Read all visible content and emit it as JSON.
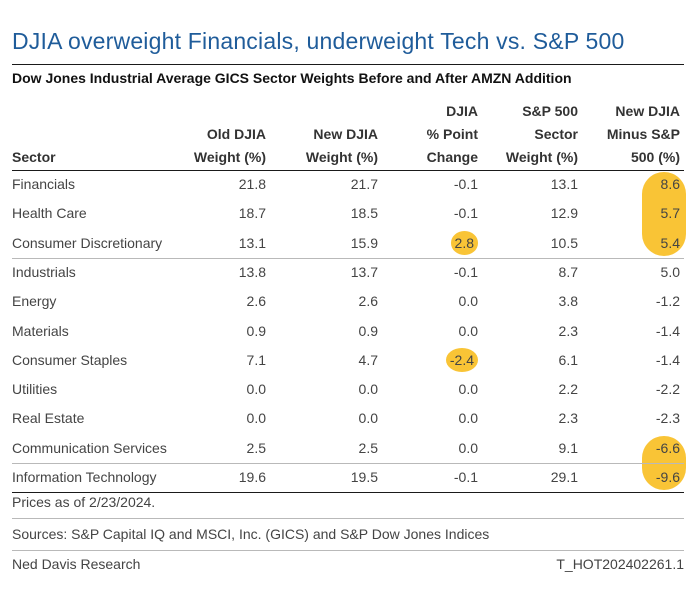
{
  "title": "DJIA overweight Financials, underweight Tech vs. S&P 500",
  "subtitle": "Dow Jones Industrial Average GICS Sector Weights Before and After AMZN Addition",
  "columns": [
    {
      "lines": [
        "",
        "",
        "Sector"
      ]
    },
    {
      "lines": [
        "",
        "Old DJIA",
        "Weight (%)"
      ]
    },
    {
      "lines": [
        "",
        "New DJIA",
        "Weight (%)"
      ]
    },
    {
      "lines": [
        "DJIA",
        "% Point",
        "Change"
      ]
    },
    {
      "lines": [
        "S&P 500",
        "Sector",
        "Weight (%)"
      ]
    },
    {
      "lines": [
        "New DJIA",
        "Minus S&P",
        "500 (%)"
      ]
    }
  ],
  "highlight_color": "#f9c436",
  "chart_data": {
    "type": "table",
    "title": "DJIA overweight Financials, underweight Tech vs. S&P 500",
    "subtitle": "Dow Jones Industrial Average GICS Sector Weights Before and After AMZN Addition",
    "columns": [
      "Sector",
      "Old DJIA Weight (%)",
      "New DJIA Weight (%)",
      "DJIA % Point Change",
      "S&P 500 Sector Weight (%)",
      "New DJIA Minus S&P 500 (%)"
    ],
    "rows": [
      [
        "Financials",
        "21.8",
        "21.7",
        "-0.1",
        "13.1",
        "8.6"
      ],
      [
        "Health Care",
        "18.7",
        "18.5",
        "-0.1",
        "12.9",
        "5.7"
      ],
      [
        "Consumer Discretionary",
        "13.1",
        "15.9",
        "2.8",
        "10.5",
        "5.4"
      ],
      [
        "Industrials",
        "13.8",
        "13.7",
        "-0.1",
        "8.7",
        "5.0"
      ],
      [
        "Energy",
        "2.6",
        "2.6",
        "0.0",
        "3.8",
        "-1.2"
      ],
      [
        "Materials",
        "0.9",
        "0.9",
        "0.0",
        "2.3",
        "-1.4"
      ],
      [
        "Consumer Staples",
        "7.1",
        "4.7",
        "-2.4",
        "6.1",
        "-1.4"
      ],
      [
        "Utilities",
        "0.0",
        "0.0",
        "0.0",
        "2.2",
        "-2.2"
      ],
      [
        "Real Estate",
        "0.0",
        "0.0",
        "0.0",
        "2.3",
        "-2.3"
      ],
      [
        "Communication Services",
        "2.5",
        "2.5",
        "0.0",
        "9.1",
        "-6.6"
      ],
      [
        "Information Technology",
        "19.6",
        "19.5",
        "-0.1",
        "29.1",
        "-9.6"
      ]
    ],
    "highlighted_cells": [
      [
        2,
        3
      ],
      [
        6,
        3
      ],
      [
        0,
        5
      ],
      [
        1,
        5
      ],
      [
        2,
        5
      ],
      [
        9,
        5
      ],
      [
        10,
        5
      ]
    ]
  },
  "footer": {
    "note": "Prices as of 2/23/2024.",
    "sources": "Sources: S&P Capital IQ and MSCI, Inc. (GICS) and S&P Dow Jones Indices",
    "brand": "Ned Davis Research",
    "code": "T_HOT202402261.1"
  }
}
